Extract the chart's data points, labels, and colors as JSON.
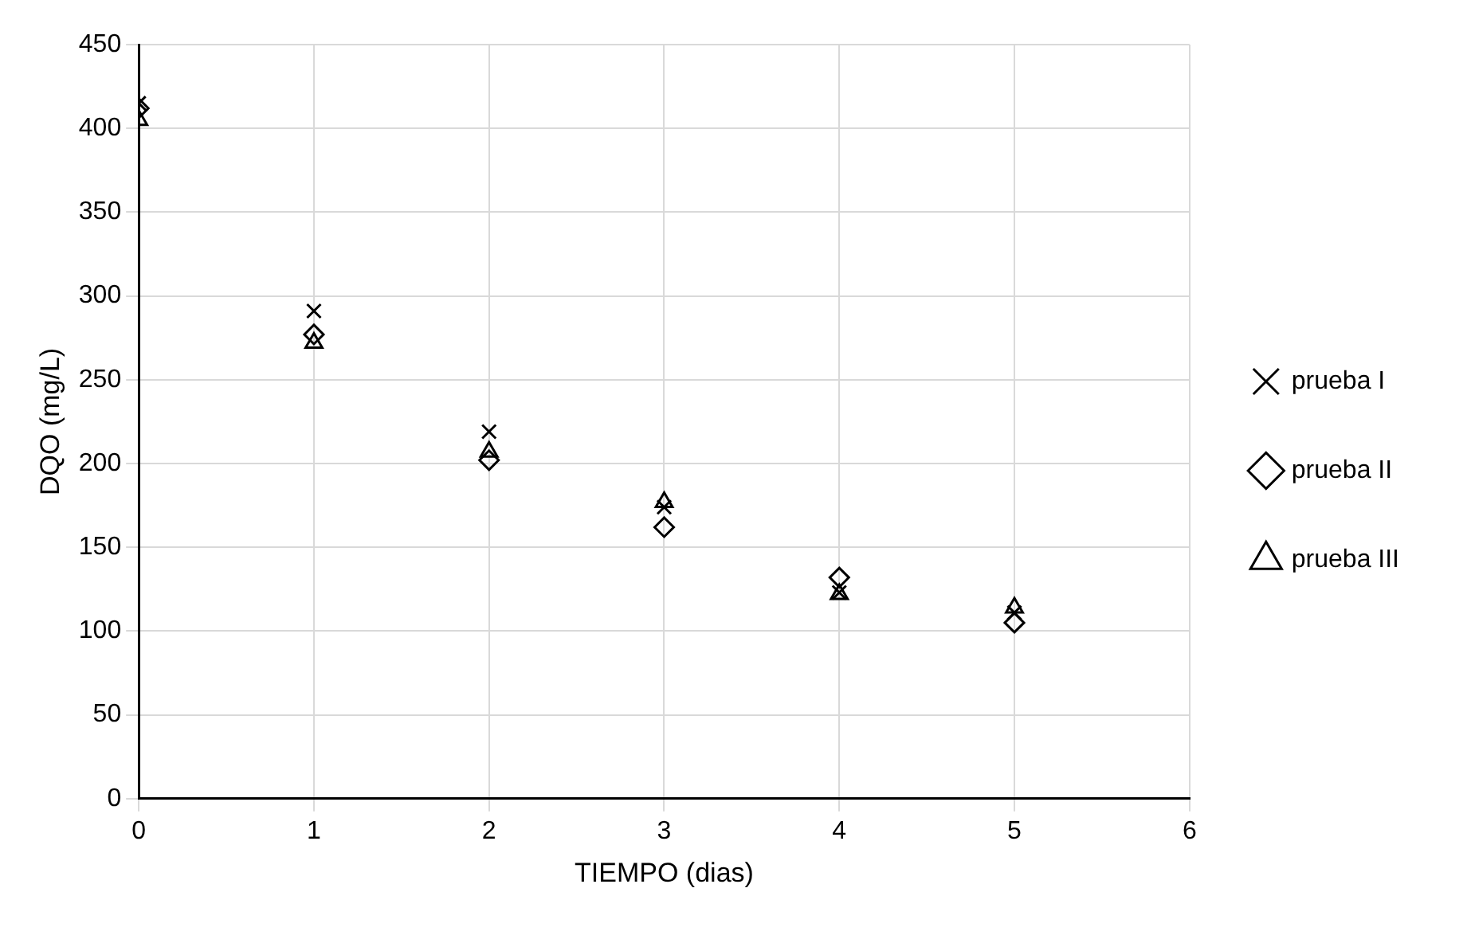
{
  "chart_data": {
    "type": "scatter",
    "xlabel": "TIEMPO (dias)",
    "ylabel": "DQO (mg/L)",
    "x": [
      0,
      1,
      2,
      3,
      4,
      5
    ],
    "series": [
      {
        "name": "prueba I",
        "color": "#000000",
        "marker": "cross",
        "values": [
          415,
          291,
          219,
          174,
          123,
          111
        ]
      },
      {
        "name": "prueba II",
        "color": "#000000",
        "marker": "diamond",
        "values": [
          412,
          277,
          202,
          162,
          132,
          105
        ]
      },
      {
        "name": "prueba III",
        "color": "#000000",
        "marker": "triangle",
        "values": [
          405,
          272,
          207,
          177,
          122,
          114
        ]
      }
    ],
    "xlim": [
      0,
      6
    ],
    "xticks": [
      0,
      1,
      2,
      3,
      4,
      5,
      6
    ],
    "ylim": [
      0,
      450
    ],
    "yticks": [
      0,
      50,
      100,
      150,
      200,
      250,
      300,
      350,
      400,
      450
    ],
    "grid": true,
    "legend": "right"
  }
}
